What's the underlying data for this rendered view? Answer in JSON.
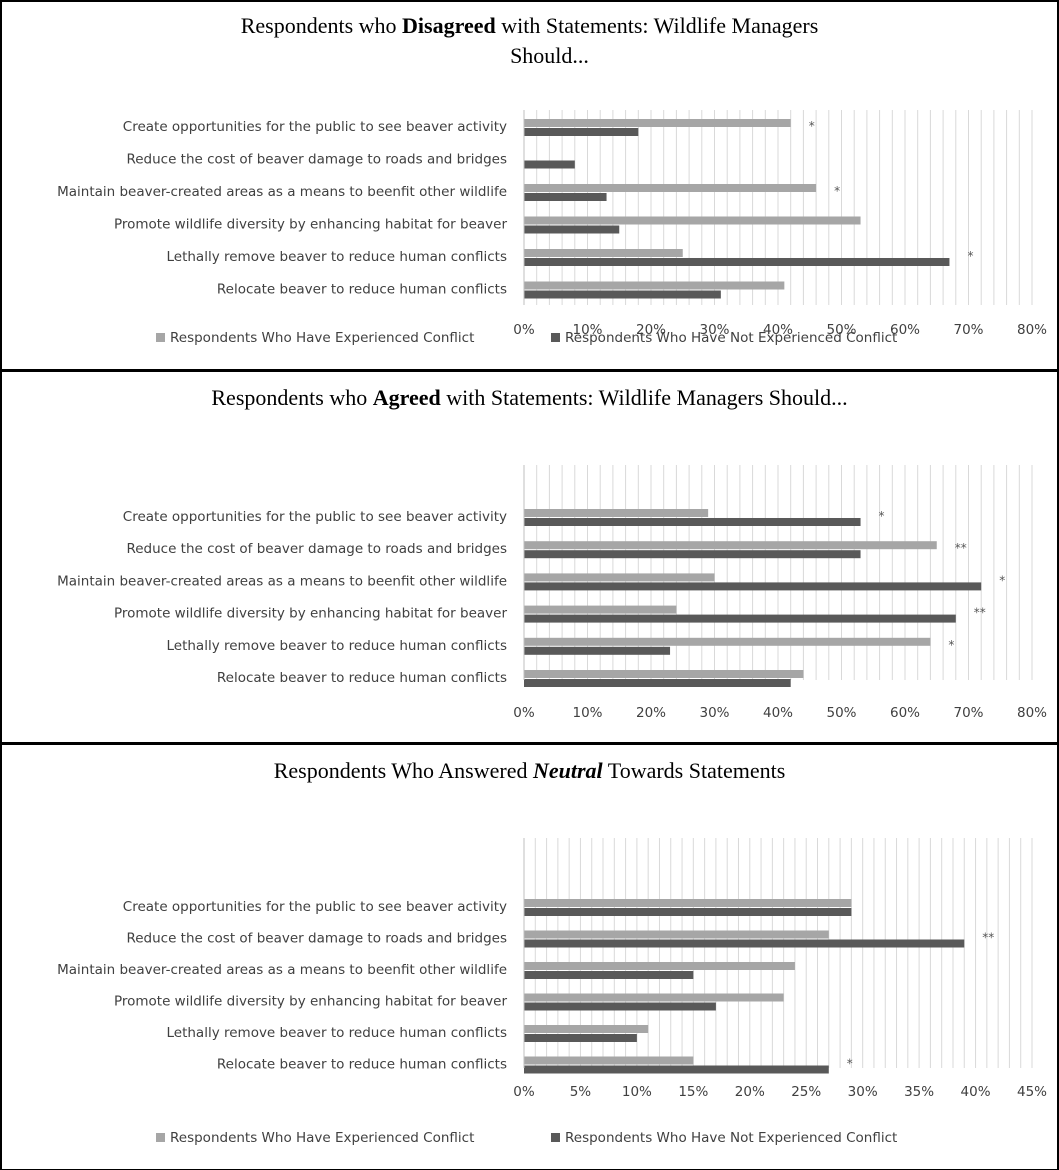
{
  "colors": {
    "experienced": "#a6a6a6",
    "not_experienced": "#595959",
    "grid": "#d9d9d9",
    "border": "#000000"
  },
  "chart_data": [
    {
      "type": "bar",
      "orientation": "horizontal",
      "title_parts": [
        {
          "text": "Respondents who ",
          "bold": false,
          "italic": false
        },
        {
          "text": "Disagreed",
          "bold": true,
          "italic": false
        },
        {
          "text": " with Statements: Wildlife Managers",
          "bold": false,
          "italic": false
        }
      ],
      "title_line2": "Should...",
      "categories": [
        "Create opportunities for the public to see beaver activity",
        "Reduce the cost of beaver damage to roads and bridges",
        "Maintain beaver-created areas as a means to beenfit other wildlife",
        "Promote wildlife diversity by enhancing habitat for beaver",
        "Lethally remove beaver to reduce human conflicts",
        "Relocate beaver to reduce human conflicts"
      ],
      "series": [
        {
          "name": "Respondents Who Have Experienced Conflict",
          "values": [
            42,
            0,
            46,
            53,
            25,
            41
          ]
        },
        {
          "name": "Respondents Who Have Not Experienced Conflict",
          "values": [
            18,
            8,
            13,
            15,
            67,
            31
          ]
        }
      ],
      "significance": [
        "*",
        "",
        "*",
        "",
        "*",
        ""
      ],
      "xlim": [
        0,
        80
      ],
      "ticks": [
        0,
        10,
        20,
        30,
        40,
        50,
        60,
        70,
        80
      ],
      "tick_labels": [
        "0%",
        "10%",
        "20%",
        "30%",
        "40%",
        "50%",
        "60%",
        "70%",
        "80%"
      ],
      "minor_grid_step": 2,
      "legend": "bottom"
    },
    {
      "type": "bar",
      "orientation": "horizontal",
      "title_parts": [
        {
          "text": "Respondents who ",
          "bold": false,
          "italic": false
        },
        {
          "text": "Agreed",
          "bold": true,
          "italic": false
        },
        {
          "text": " with Statements: Wildlife Managers Should...",
          "bold": false,
          "italic": false
        }
      ],
      "title_line2": "",
      "categories": [
        "Create opportunities for the public to see beaver activity",
        "Reduce the cost of beaver damage to roads and bridges",
        "Maintain beaver-created areas as a means to beenfit other wildlife",
        "Promote wildlife diversity by enhancing habitat for beaver",
        "Lethally remove beaver to reduce human conflicts",
        "Relocate beaver to reduce human conflicts"
      ],
      "series": [
        {
          "name": "Respondents Who Have Experienced Conflict",
          "values": [
            29,
            65,
            30,
            24,
            64,
            44
          ]
        },
        {
          "name": "Respondents Who Have Not Experienced Conflict",
          "values": [
            53,
            53,
            72,
            68,
            23,
            42
          ]
        }
      ],
      "significance": [
        "*",
        "**",
        "*",
        "**",
        "*",
        ""
      ],
      "xlim": [
        0,
        80
      ],
      "ticks": [
        0,
        10,
        20,
        30,
        40,
        50,
        60,
        70,
        80
      ],
      "tick_labels": [
        "0%",
        "10%",
        "20%",
        "30%",
        "40%",
        "50%",
        "60%",
        "70%",
        "80%"
      ],
      "minor_grid_step": 2,
      "legend": "bottom"
    },
    {
      "type": "bar",
      "orientation": "horizontal",
      "title_parts": [
        {
          "text": "Respondents Who Answered ",
          "bold": false,
          "italic": false
        },
        {
          "text": "Neutral",
          "bold": true,
          "italic": true
        },
        {
          "text": " Towards Statements",
          "bold": false,
          "italic": false
        }
      ],
      "title_line2": "",
      "categories": [
        "Create opportunities for the public to see beaver activity",
        "Reduce the cost of beaver damage to roads and bridges",
        "Maintain beaver-created areas as a means to beenfit other wildlife",
        "Promote wildlife diversity by enhancing habitat for beaver",
        "Lethally remove beaver to reduce human conflicts",
        "Relocate beaver to reduce human conflicts"
      ],
      "series": [
        {
          "name": "Respondents Who Have Experienced Conflict",
          "values": [
            29,
            27,
            24,
            23,
            11,
            15
          ]
        },
        {
          "name": "Respondents Who Have Not Experienced Conflict",
          "values": [
            29,
            39,
            15,
            17,
            10,
            27
          ]
        }
      ],
      "significance": [
        "",
        "**",
        "",
        "",
        "",
        "*"
      ],
      "xlim": [
        0,
        45
      ],
      "ticks": [
        0,
        5,
        10,
        15,
        20,
        25,
        30,
        35,
        40,
        45
      ],
      "tick_labels": [
        "0%",
        "5%",
        "10%",
        "15%",
        "20%",
        "25%",
        "30%",
        "35%",
        "40%",
        "45%"
      ],
      "minor_grid_step": 1,
      "legend": "bottom"
    }
  ]
}
